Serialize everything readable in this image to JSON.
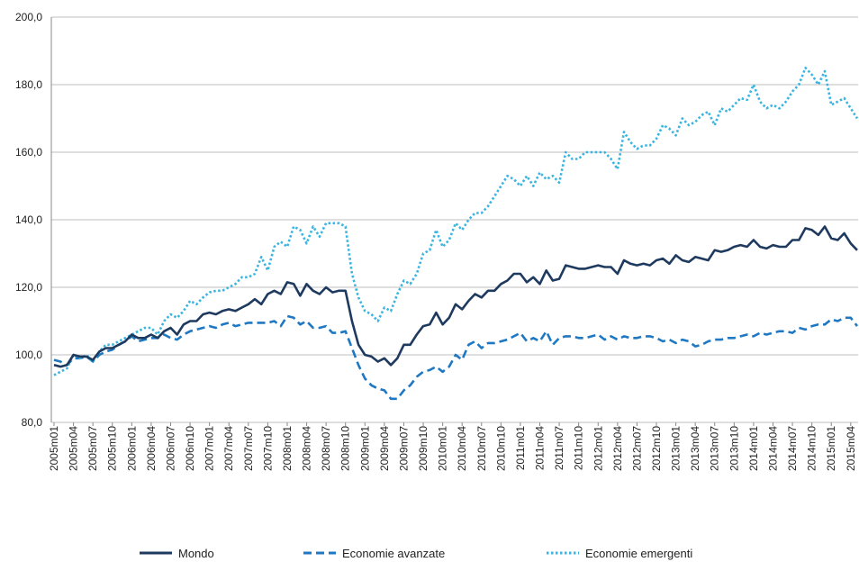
{
  "chart_data": {
    "type": "line",
    "categories": [
      "2005m01",
      null,
      null,
      "2005m04",
      null,
      null,
      "2005m07",
      null,
      null,
      "2005m10",
      null,
      null,
      "2006m01",
      null,
      null,
      "2006m04",
      null,
      null,
      "2006m07",
      null,
      null,
      "2006m10",
      null,
      null,
      "2007m01",
      null,
      null,
      "2007m04",
      null,
      null,
      "2007m07",
      null,
      null,
      "2007m10",
      null,
      null,
      "2008m01",
      null,
      null,
      "2008m04",
      null,
      null,
      "2008m07",
      null,
      null,
      "2008m10",
      null,
      null,
      "2009m01",
      null,
      null,
      "2009m04",
      null,
      null,
      "2009m07",
      null,
      null,
      "2009m10",
      null,
      null,
      "2010m01",
      null,
      null,
      "2010m04",
      null,
      null,
      "2010m07",
      null,
      null,
      "2010m10",
      null,
      null,
      "2011m01",
      null,
      null,
      "2011m04",
      null,
      null,
      "2011m07",
      null,
      null,
      "2011m10",
      null,
      null,
      "2012m01",
      null,
      null,
      "2012m04",
      null,
      null,
      "2012m07",
      null,
      null,
      "2012m10",
      null,
      null,
      "2013m01",
      null,
      null,
      "2013m04",
      null,
      null,
      "2013m07",
      null,
      null,
      "2013m10",
      null,
      null,
      "2014m01",
      null,
      null,
      "2014m04",
      null,
      null,
      "2014m07",
      null,
      null,
      "2014m10",
      null,
      null,
      "2015m01",
      null,
      null,
      "2015m04",
      null
    ],
    "series": [
      {
        "name": "Mondo",
        "color": "#1f3a5f",
        "style": "solid",
        "values": [
          97,
          96.5,
          97,
          100,
          99.5,
          99.5,
          98.5,
          101,
          102,
          102,
          103,
          104,
          106,
          105,
          105,
          106,
          105,
          107,
          108,
          106,
          109,
          110,
          110,
          112,
          112.5,
          112,
          113,
          113.5,
          113,
          114,
          115,
          116.5,
          115,
          118,
          119,
          118,
          121.5,
          121,
          117.5,
          121,
          119,
          118,
          120,
          118.5,
          119,
          119,
          110,
          103,
          100,
          99.5,
          98,
          99,
          97,
          99,
          103,
          103,
          106,
          108.5,
          109,
          112.5,
          109,
          111,
          115,
          113.5,
          116,
          118,
          117,
          119,
          119,
          121,
          122,
          124,
          124,
          121.5,
          123,
          121,
          125,
          122,
          122.5,
          126.5,
          126,
          125.5,
          125.5,
          126,
          126.5,
          126,
          126,
          124,
          128,
          127,
          126.5,
          127,
          126.5,
          128,
          128.5,
          127,
          129.5,
          128,
          127.5,
          129,
          128.5,
          128,
          131,
          130.5,
          131,
          132,
          132.5,
          132,
          134,
          132,
          131.5,
          132.5,
          132,
          132,
          134,
          134,
          137.5,
          137,
          135.5,
          138,
          134.5,
          134,
          136,
          133,
          131
        ]
      },
      {
        "name": "Economie avanzate",
        "color": "#1f78c1",
        "style": "dashed",
        "values": [
          98.5,
          98,
          97,
          99,
          99,
          99.5,
          98,
          100,
          101,
          101.5,
          103,
          104,
          105.5,
          104,
          104.5,
          105,
          105,
          106,
          105,
          104.5,
          106,
          107,
          107.5,
          108,
          108.5,
          108,
          109,
          109.5,
          108.5,
          109,
          109.5,
          109.5,
          109.5,
          109.5,
          110,
          108.5,
          111.5,
          111,
          109,
          110,
          108,
          108,
          108.5,
          106.5,
          106.5,
          107,
          102,
          97,
          93,
          91,
          90,
          89.5,
          87,
          87,
          89.5,
          91,
          93.5,
          95,
          95.5,
          96.5,
          95,
          96.5,
          100,
          98.5,
          103,
          104,
          102,
          103.5,
          103.5,
          104,
          104.5,
          105.5,
          106.5,
          104,
          105,
          104,
          107,
          103,
          105,
          105.5,
          105.5,
          105,
          105,
          105.5,
          106,
          104.5,
          105.5,
          104.5,
          105.5,
          105,
          105,
          105.5,
          105.5,
          105,
          104,
          104.5,
          103.5,
          104.5,
          104,
          102.5,
          103,
          104,
          104.5,
          104.5,
          105,
          105,
          105.5,
          106,
          105.5,
          106.5,
          106,
          106.5,
          107,
          107,
          106.5,
          108,
          107.5,
          108.5,
          109,
          109,
          110.5,
          110,
          111,
          111,
          108.5
        ]
      },
      {
        "name": "Economie emergenti",
        "color": "#3ab4e0",
        "style": "dotted",
        "values": [
          94,
          95,
          96,
          100,
          99,
          100,
          98,
          101,
          103,
          103,
          104,
          105,
          106,
          107,
          108,
          108,
          106,
          110,
          112,
          111,
          113,
          116,
          115,
          117,
          118.5,
          119,
          119,
          120,
          121,
          123,
          123,
          124,
          129,
          125,
          132,
          133.5,
          132,
          138,
          137,
          133,
          138,
          135,
          139,
          139,
          139,
          138,
          124,
          117,
          113,
          112,
          110,
          114,
          113,
          118,
          122,
          121,
          124,
          130,
          131,
          137,
          132,
          134,
          139,
          137,
          140,
          142,
          142,
          144,
          147,
          150,
          153,
          152,
          150,
          153,
          150,
          154,
          152,
          153,
          151,
          160,
          158,
          158,
          160,
          160,
          160,
          160,
          158,
          155,
          166,
          163,
          161,
          162,
          162,
          164,
          168,
          167,
          165,
          170,
          168,
          169,
          171,
          172,
          168,
          173,
          172,
          174,
          176,
          175.5,
          180,
          175,
          173,
          174,
          173,
          175,
          178,
          180,
          185,
          183,
          180,
          184,
          174,
          175,
          176,
          173,
          170
        ]
      }
    ],
    "ylim": [
      80,
      200
    ],
    "yticks": [
      {
        "value": 80,
        "label": "80,0"
      },
      {
        "value": 100,
        "label": "100,0"
      },
      {
        "value": 120,
        "label": "120,0"
      },
      {
        "value": 140,
        "label": "140,0"
      },
      {
        "value": 160,
        "label": "160,0"
      },
      {
        "value": 180,
        "label": "180,0"
      },
      {
        "value": 200,
        "label": "200,0"
      }
    ],
    "grid": true,
    "legend": "bottom"
  }
}
